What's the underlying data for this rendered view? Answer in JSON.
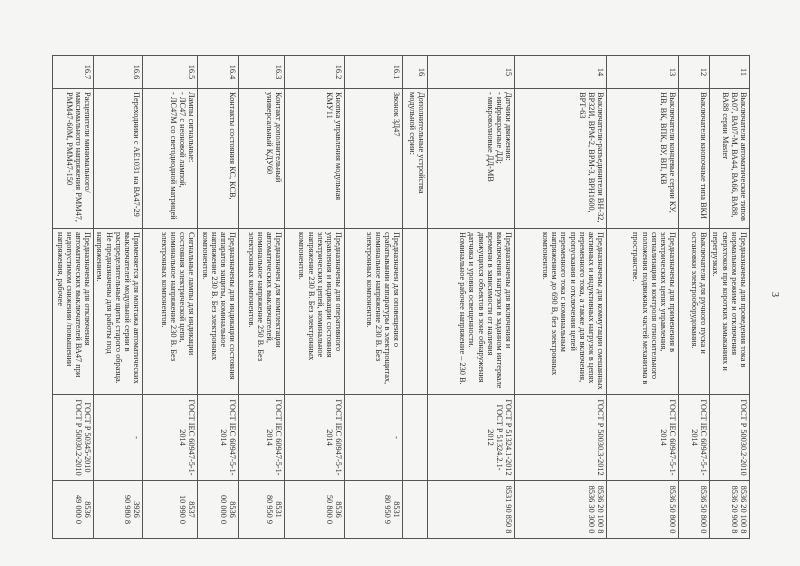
{
  "page_number": "3",
  "rows": [
    {
      "num": "11",
      "name": "Выключатели автоматические типов ВА07, ВА07-М, ВА44, ВА66, ВА88, ВА88 серии Master",
      "purpose": "Предназначены для проведения тока в нормальном режиме и отключения сверхтоков при коротких замыканиях и перегрузках.",
      "gost": "ГОСТ Р 50030.2-2010",
      "code": "8536 20 100 8\n8536 20 900 8"
    },
    {
      "num": "12",
      "name": "Выключатели кнопочные типа ВКИ",
      "purpose": "Выключатели для ручного пуска и остановки электрооборудования.",
      "gost": "ГОСТ IEC 60947-5-1-2014",
      "code": "8536 50 800 0"
    },
    {
      "num": "13",
      "name": "Выключатели концевые серии КУ, НВ, ВК, ВПК, ВУ, ВП, КВ",
      "purpose": "Предназначены для применения в электрических цепях управления, сигнализации и контроля относительного положения подвижных частей механизма в пространстве.",
      "gost": "ГОСТ IEC 60947-5-1-2014",
      "code": "8536 50 800 0"
    },
    {
      "num": "14",
      "name": "Выключатели-разъединители ВН-32, ВР32И, ВРМ-2, ВРМ-3, ВРН1600, ВРТ-63",
      "purpose": "Предназначены для коммутации смешанных активных и индуктивных нагрузок в цепях переменного тока, а также для включения, пропускания и отключения цепей переменного тока с номинальным напряжением до 690 В, без электронных компонентов.",
      "gost": "ГОСТ Р 50030.3-2012",
      "code": "8536 20 100 8\n8536 30 300 0"
    },
    {
      "num": "15",
      "name": "Датчики движения:\n- инфракрасные ДД;\n- микроволновые ДД-МВ",
      "purpose": "Предназначены для включения и выключения нагрузки в заданном интервале времени в зависимости от наличия движущихся объектов в зоне обнаружения датчика и уровня освещенности. Номинальное рабочее напряжение – 230 В.",
      "gost": "ГОСТ Р 51324.1-2012\nГОСТ Р 51324.2.1-2012",
      "code": "8531 90 850 8"
    },
    {
      "num": "16",
      "name": "Дополнительные устройства модульной серии:",
      "purpose": "",
      "gost": "",
      "code": ""
    },
    {
      "num": "16.1",
      "name": "Звонок ЗД47",
      "purpose": "Предназначен для оповещения о срабатывании аппаратуры в электрощитах, номинальное напряжение 230 В. Без электронных компонентов.",
      "gost": "-",
      "code": "8531\n80 950 9"
    },
    {
      "num": "16.2",
      "name": "Кнопка управления модульная КМУ11",
      "purpose": "Предназначены для оперативного управления и индикации состояния электрических цепей, номинальное напряжение 230 В. Без электронных компонентов.",
      "gost": "ГОСТ IEC 60947-5-1-2014",
      "code": "8536\n50 800 0"
    },
    {
      "num": "16.3",
      "name": "Контакт дополнительный универсальный КДУ60",
      "purpose": "Предназначен для комплектации автоматических выключателей, номинальное напряжение 250 В. Без электронных компонентов.",
      "gost": "ГОСТ IEC 60947-5-1-2014",
      "code": "8531\n80 950 9"
    },
    {
      "num": "16.4",
      "name": "Контакты состояния КС, КСВ,",
      "purpose": "Предназначены для индикации состояния аппаратов защиты, номинальное напряжение 230 В. Без электронных компонентов.",
      "gost": "ГОСТ IEC 60947-5-1-2014",
      "code": "8536\n00 000 0"
    },
    {
      "num": "16.5",
      "name": "Лампы сигнальные:\n- ЛС47 с неоновой лампой,\n- ЛС47М со светодиодной матрицей",
      "purpose": "Сигнальные лампы для индикации состояния электрической цепи, номинальное напряжение 230 В. Без электронных компонентов.",
      "gost": "ГОСТ IEC 60947-5-1-2014",
      "code": "8537\n10 990 0"
    },
    {
      "num": "16.6",
      "name": "Переходники с АЕ1031 на ВА47-29",
      "purpose": "Применяется для монтажа автоматических выключателей модульной серии в распределительные щиты старого образца. Не предназначены для работы под напряжением.",
      "gost": "-",
      "code": "3926\n90 980 8"
    },
    {
      "num": "16.7",
      "name": "Расцепители минимального/максимального напряжения РММ47, РММ47-60М, РММ47-150",
      "purpose": "Предназначены для отключения автоматических выключателей ВА47 при недопустимом снижении /повышении напряжения, рабочее",
      "gost": "ГОСТ Р 50345-2010\nГОСТ Р 50030.2-2010",
      "code": "8536\n49 000 0"
    }
  ]
}
